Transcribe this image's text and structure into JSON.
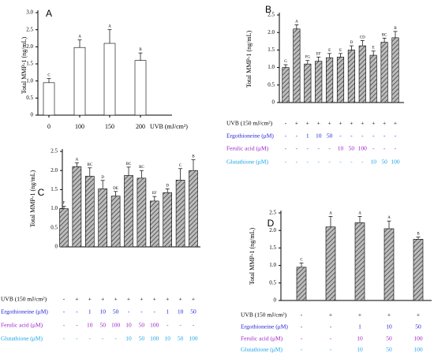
{
  "figure": {
    "colors": {
      "axis": "#000000",
      "white_bar": "#ffffff",
      "hatched_bar": "#8c8c8c",
      "ergo": "#1f1fd6",
      "ferulic": "#9b1fc8",
      "glut": "#1aa3e8",
      "uvb": "#000000"
    }
  },
  "chart_data": [
    {
      "panel": "A",
      "type": "bar",
      "ylabel": "Total MMP-1 (ng/mL)",
      "ylim": [
        0,
        3.0
      ],
      "yticks": [
        "0",
        "0.5",
        "1.0",
        "1.5",
        "2.0",
        "2.5",
        "3.0"
      ],
      "xunit": "UVB (mJ/cm²)",
      "categories": [
        "0",
        "100",
        "150",
        "200"
      ],
      "values": [
        0.95,
        1.98,
        2.1,
        1.6
      ],
      "errors": [
        0.12,
        0.22,
        0.4,
        0.22
      ],
      "letters": [
        "C",
        "A",
        "A",
        "B"
      ],
      "bar_style": "white"
    },
    {
      "panel": "B",
      "type": "bar",
      "ylabel": "Total MMP-1 (ng/mL)",
      "ylim": [
        0,
        2.5
      ],
      "yticks": [
        "0",
        "0.5",
        "1.0",
        "1.5",
        "2.0",
        "2.5"
      ],
      "values": [
        1.0,
        2.1,
        1.1,
        1.18,
        1.28,
        1.3,
        1.5,
        1.62,
        1.35,
        1.72,
        1.85
      ],
      "errors": [
        0.08,
        0.12,
        0.1,
        0.12,
        0.12,
        0.1,
        0.12,
        0.15,
        0.12,
        0.12,
        0.18
      ],
      "letters": [
        "G",
        "A",
        "FG",
        "EF",
        "E",
        "E",
        "D",
        "CD",
        "E",
        "BC",
        "B"
      ],
      "bar_style": "hatched",
      "rows": [
        {
          "label": "UVB (150 mJ/cm²)",
          "color": "uvb",
          "values": [
            "-",
            "+",
            "+",
            "+",
            "+",
            "+",
            "+",
            "+",
            "+",
            "+",
            "+"
          ]
        },
        {
          "label": "Ergothioneine (μM)",
          "color": "ergo",
          "values": [
            "-",
            "-",
            "1",
            "10",
            "50",
            "-",
            "-",
            "-",
            "-",
            "-",
            "-"
          ]
        },
        {
          "label": "Ferulic acid (μM)",
          "color": "ferulic",
          "values": [
            "-",
            "-",
            "-",
            "-",
            "-",
            "10",
            "50",
            "100",
            "-",
            "-",
            "-"
          ]
        },
        {
          "label": "Glutathione (μM)",
          "color": "glut",
          "values": [
            "-",
            "-",
            "-",
            "-",
            "-",
            "-",
            "-",
            "-",
            "10",
            "50",
            "100"
          ]
        }
      ]
    },
    {
      "panel": "C",
      "type": "bar",
      "ylabel": "Total MMP-1 (ng/mL)",
      "ylim": [
        0,
        2.5
      ],
      "yticks": [
        "0",
        "0.5",
        "1.0",
        "1.5",
        "2.0",
        "2.5"
      ],
      "values": [
        1.0,
        2.1,
        1.85,
        1.52,
        1.33,
        1.87,
        1.8,
        1.2,
        1.42,
        1.75,
        2.0
      ],
      "errors": [
        0.06,
        0.1,
        0.22,
        0.22,
        0.12,
        0.22,
        0.2,
        0.12,
        0.1,
        0.3,
        0.28
      ],
      "letters": [
        "F",
        "A",
        "BC",
        "D",
        "DE",
        "BC",
        "BC",
        "EF",
        "D",
        "C",
        "B"
      ],
      "bar_style": "hatched",
      "rows": [
        {
          "label": "UVB (150 mJ/cm²)",
          "color": "uvb",
          "values": [
            "-",
            "+",
            "+",
            "+",
            "+",
            "+",
            "+",
            "+",
            "+",
            "+",
            "+"
          ]
        },
        {
          "label": "Ergothioneine (μM)",
          "color": "ergo",
          "values": [
            "-",
            "-",
            "1",
            "10",
            "50",
            "-",
            "-",
            "-",
            "1",
            "10",
            "50"
          ]
        },
        {
          "label": "Ferulic acid (μM)",
          "color": "ferulic",
          "values": [
            "-",
            "-",
            "10",
            "50",
            "100",
            "10",
            "50",
            "100",
            "-",
            "-",
            "-"
          ]
        },
        {
          "label": "Glutathione (μM)",
          "color": "glut",
          "values": [
            "-",
            "-",
            "-",
            "-",
            "-",
            "10",
            "50",
            "100",
            "10",
            "50",
            "100"
          ]
        }
      ]
    },
    {
      "panel": "D",
      "type": "bar",
      "ylabel": "Total MMP-1 (ng/mL)",
      "ylim": [
        0,
        2.5
      ],
      "yticks": [
        "0",
        "0.5",
        "1.0",
        "1.5",
        "2.0",
        "2.5"
      ],
      "values": [
        0.95,
        2.1,
        2.22,
        2.05,
        1.75
      ],
      "errors": [
        0.12,
        0.3,
        0.18,
        0.22,
        0.06
      ],
      "letters": [
        "C",
        "A",
        "A",
        "A",
        "B"
      ],
      "bar_style": "hatched",
      "rows": [
        {
          "label": "UVB (150 mJ/cm²)",
          "color": "uvb",
          "values": [
            "-",
            "+",
            "+",
            "+",
            "+"
          ]
        },
        {
          "label": "Ergothioneine (μM)",
          "color": "ergo",
          "values": [
            "-",
            "-",
            "1",
            "10",
            "50"
          ]
        },
        {
          "label": "Ferulic acid (μM)",
          "color": "ferulic",
          "values": [
            "-",
            "-",
            "10",
            "50",
            "100"
          ]
        },
        {
          "label": "Glutathione (μM)",
          "color": "glut",
          "values": [
            "-",
            "-",
            "10",
            "50",
            "100"
          ]
        }
      ]
    }
  ]
}
